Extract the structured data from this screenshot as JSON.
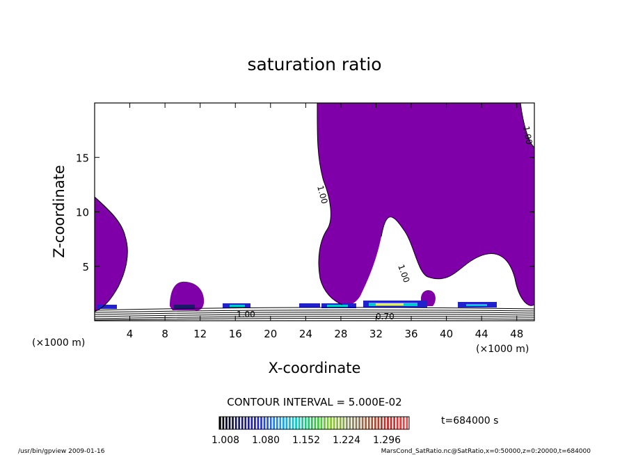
{
  "chart_data": {
    "type": "contour",
    "title": "saturation ratio",
    "xlabel": "X-coordinate",
    "ylabel": "Z-coordinate",
    "xunit": "(×1000 m)",
    "yunit": "(×1000 m)",
    "xlim": [
      0,
      50
    ],
    "ylim": [
      0,
      20
    ],
    "xticks": [
      4,
      8,
      12,
      16,
      20,
      24,
      28,
      32,
      36,
      40,
      44,
      48
    ],
    "yticks": [
      5,
      10,
      15
    ],
    "contour_interval_text": "CONTOUR INTERVAL = 5.000E-02",
    "contour_labels": [
      "1.00",
      "1.00",
      "1.00",
      "1.00",
      "0.70"
    ],
    "colorbar": {
      "ticks": [
        "1.008",
        "1.080",
        "1.152",
        "1.224",
        "1.296"
      ],
      "colors": [
        "#000000",
        "#1a1a66",
        "#2222cc",
        "#2288ff",
        "#00cccc",
        "#22cc44",
        "#88cc22",
        "#888866",
        "#aa5533",
        "#cc2222",
        "#ff4444"
      ]
    },
    "time_label": "t=684000 s",
    "fill_color": "#7f00a8",
    "grid": false
  },
  "footer": {
    "left": "/usr/bin/gpview  2009-01-16",
    "right": "MarsCond_SatRatio.nc@SatRatio,x=0:50000,z=0:20000,t=684000"
  }
}
